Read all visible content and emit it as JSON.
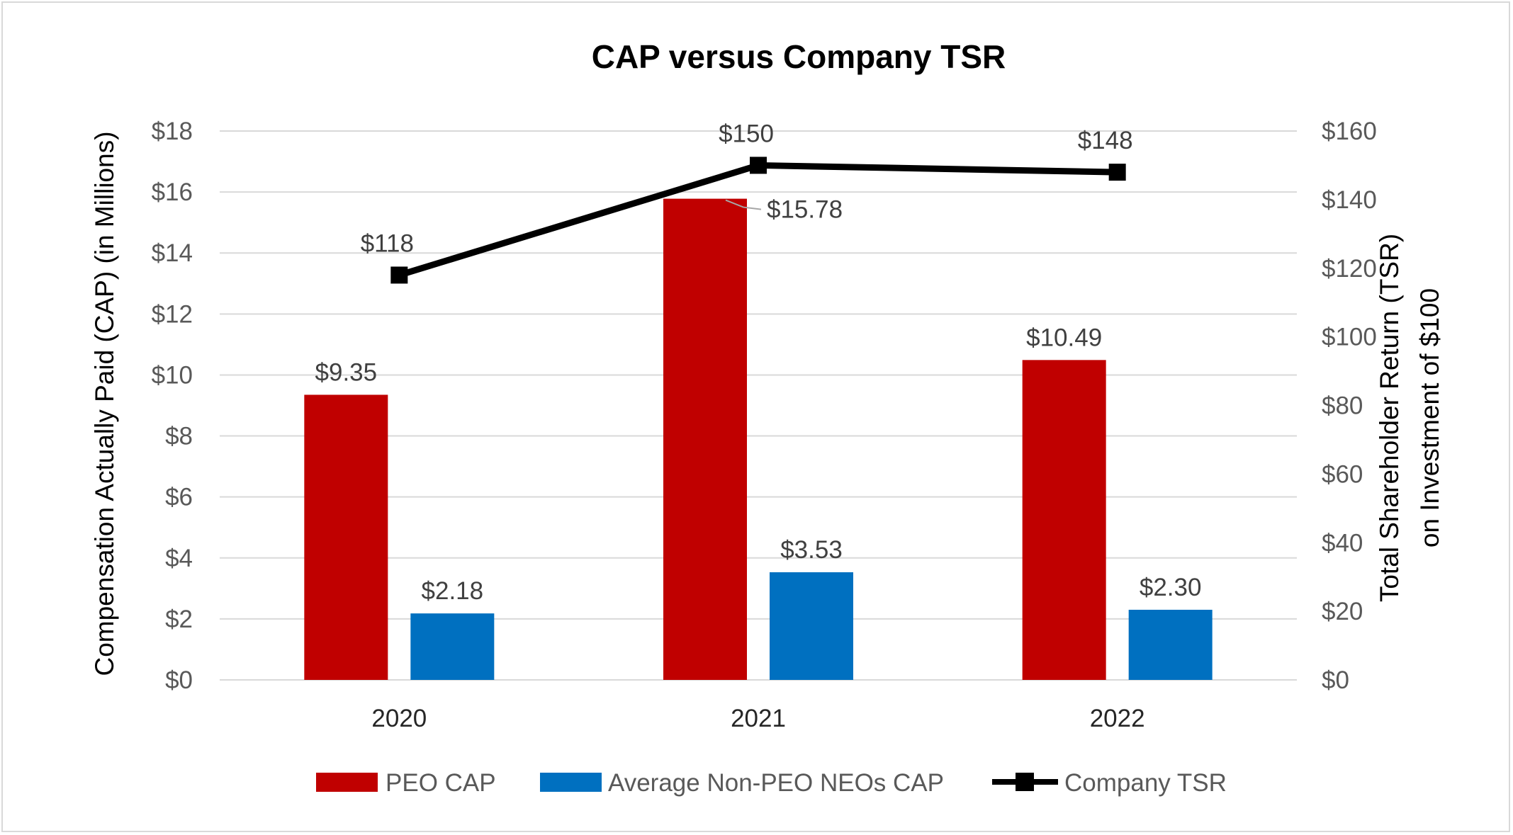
{
  "chart_data": {
    "type": "bar",
    "title": "CAP versus Company TSR",
    "categories": [
      "2020",
      "2021",
      "2022"
    ],
    "series": [
      {
        "name": "PEO CAP",
        "kind": "bar",
        "axis": "left",
        "color": "#c00000",
        "values": [
          9.35,
          15.78,
          10.49
        ],
        "labels": [
          "$9.35",
          "$15.78",
          "$10.49"
        ]
      },
      {
        "name": "Average Non-PEO NEOs CAP",
        "kind": "bar",
        "axis": "left",
        "color": "#0070c0",
        "values": [
          2.18,
          3.53,
          2.3
        ],
        "labels": [
          "$2.18",
          "$3.53",
          "$2.30"
        ]
      },
      {
        "name": "Company TSR",
        "kind": "line",
        "axis": "right",
        "color": "#000000",
        "marker": "square",
        "values": [
          118,
          150,
          148
        ],
        "labels": [
          "$118",
          "$150",
          "$148"
        ]
      }
    ],
    "left_axis": {
      "label": "Compensation Actually Paid (CAP) (in Millions)",
      "ylim": [
        0,
        18
      ],
      "ticks": [
        "$0",
        "$2",
        "$4",
        "$6",
        "$8",
        "$10",
        "$12",
        "$14",
        "$16",
        "$18"
      ]
    },
    "right_axis": {
      "label_lines": [
        "Total Shareholder Return (TSR)",
        "on Investment of $100"
      ],
      "ylim": [
        0,
        160
      ],
      "ticks": [
        "$0",
        "$20",
        "$40",
        "$60",
        "$80",
        "$100",
        "$120",
        "$140",
        "$160"
      ]
    },
    "grid": true,
    "legend": "bottom"
  }
}
